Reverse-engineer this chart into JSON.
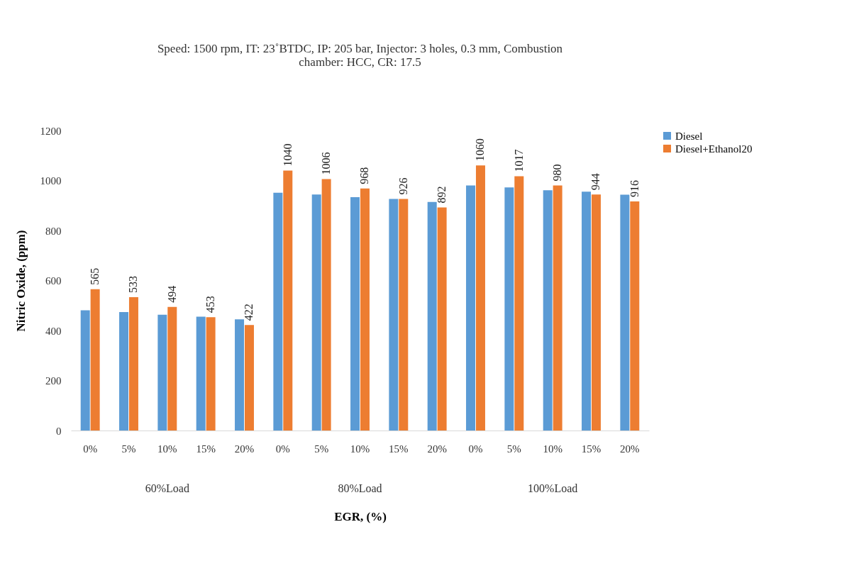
{
  "chart_data": {
    "type": "bar",
    "title": "Speed: 1500 rpm, IT: 23˚BTDC, IP: 205 bar, Injector: 3 holes, 0.3 mm, Combustion chamber: HCC, CR: 17.5",
    "xlabel": "EGR, (%)",
    "ylabel": "Nitric Oxide, (ppm)",
    "categories": [
      "0%",
      "5%",
      "10%",
      "15%",
      "20%",
      "0%",
      "5%",
      "10%",
      "15%",
      "20%",
      "0%",
      "5%",
      "10%",
      "15%",
      "20%"
    ],
    "annotations": [
      "60%Load",
      "80%Load",
      "100%Load"
    ],
    "series": [
      {
        "name": "Diesel",
        "color": "#5b9bd5",
        "values": [
          481,
          474,
          463,
          455,
          445,
          951,
          944,
          933,
          926,
          914,
          980,
          972,
          961,
          955,
          943
        ]
      },
      {
        "name": "Diesel+Ethanol20",
        "color": "#ed7d31",
        "values": [
          565,
          533,
          494,
          453,
          422,
          1040,
          1006,
          968,
          926,
          892,
          1060,
          1017,
          980,
          944,
          916
        ],
        "value_labels": [
          "565",
          "533",
          "494",
          "453",
          "422",
          "1040",
          "1006",
          "968",
          "926",
          "892",
          "1060",
          "1017",
          "980",
          "944",
          "916"
        ]
      }
    ],
    "ylim": [
      0,
      1200
    ],
    "yticks": [
      0,
      200,
      400,
      600,
      800,
      1000,
      1200
    ],
    "grid": false,
    "legend": "right"
  }
}
